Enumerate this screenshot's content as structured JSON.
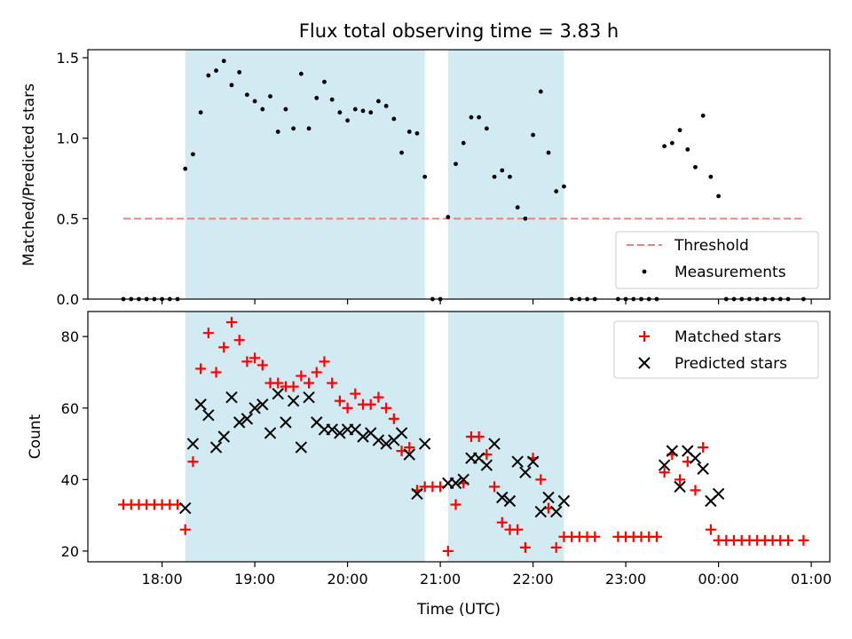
{
  "figure_title": "Flux total observing time = 3.83 h",
  "colors": {
    "band": "#add8e6",
    "threshold": "#f08080",
    "measurements": "#000000",
    "matched": "#ff0000",
    "predicted": "#000000"
  },
  "chart_data": [
    {
      "type": "scatter",
      "title": "Flux total observing time = 3.83 h",
      "xlabel": "",
      "ylabel": "Matched/Predicted stars",
      "xlim": [
        "17:12",
        "01:12"
      ],
      "ylim": [
        0,
        1.55
      ],
      "yticks": [
        "0.0",
        "0.5",
        "1.0",
        "1.5"
      ],
      "xticks": [
        "18:00",
        "19:00",
        "20:00",
        "21:00",
        "22:00",
        "23:00",
        "00:00",
        "01:00"
      ],
      "shaded_ranges": [
        [
          "18:15",
          "20:50"
        ],
        [
          "21:05",
          "22:20"
        ]
      ],
      "legend_position": "lower-right",
      "threshold": {
        "name": "Threshold",
        "value": 0.5,
        "x_range": [
          "17:35",
          "00:55"
        ]
      },
      "series": [
        {
          "name": "Measurements",
          "points": [
            [
              "17:35",
              0
            ],
            [
              "17:40",
              0
            ],
            [
              "17:45",
              0
            ],
            [
              "17:50",
              0
            ],
            [
              "17:55",
              0
            ],
            [
              "18:00",
              0
            ],
            [
              "18:05",
              0
            ],
            [
              "18:10",
              0
            ],
            [
              "18:15",
              0.81
            ],
            [
              "18:20",
              0.9
            ],
            [
              "18:25",
              1.16
            ],
            [
              "18:30",
              1.39
            ],
            [
              "18:35",
              1.42
            ],
            [
              "18:40",
              1.48
            ],
            [
              "18:45",
              1.33
            ],
            [
              "18:50",
              1.41
            ],
            [
              "18:55",
              1.27
            ],
            [
              "19:00",
              1.23
            ],
            [
              "19:05",
              1.18
            ],
            [
              "19:10",
              1.26
            ],
            [
              "19:15",
              1.04
            ],
            [
              "19:20",
              1.18
            ],
            [
              "19:25",
              1.06
            ],
            [
              "19:30",
              1.4
            ],
            [
              "19:35",
              1.06
            ],
            [
              "19:40",
              1.25
            ],
            [
              "19:45",
              1.35
            ],
            [
              "19:50",
              1.24
            ],
            [
              "19:55",
              1.16
            ],
            [
              "20:00",
              1.11
            ],
            [
              "20:05",
              1.18
            ],
            [
              "20:10",
              1.17
            ],
            [
              "20:15",
              1.16
            ],
            [
              "20:20",
              1.23
            ],
            [
              "20:25",
              1.2
            ],
            [
              "20:30",
              1.12
            ],
            [
              "20:35",
              0.91
            ],
            [
              "20:40",
              1.04
            ],
            [
              "20:45",
              1.03
            ],
            [
              "20:50",
              0.76
            ],
            [
              "20:55",
              0
            ],
            [
              "21:00",
              0
            ],
            [
              "21:05",
              0.51
            ],
            [
              "21:10",
              0.84
            ],
            [
              "21:15",
              0.97
            ],
            [
              "21:20",
              1.13
            ],
            [
              "21:25",
              1.13
            ],
            [
              "21:30",
              1.06
            ],
            [
              "21:35",
              0.76
            ],
            [
              "21:40",
              0.8
            ],
            [
              "21:45",
              0.76
            ],
            [
              "21:50",
              0.57
            ],
            [
              "21:55",
              0.5
            ],
            [
              "22:00",
              1.02
            ],
            [
              "22:05",
              1.29
            ],
            [
              "22:10",
              0.91
            ],
            [
              "22:15",
              0.67
            ],
            [
              "22:20",
              0.7
            ],
            [
              "22:25",
              0
            ],
            [
              "22:30",
              0
            ],
            [
              "22:35",
              0
            ],
            [
              "22:40",
              0
            ],
            [
              "22:55",
              0
            ],
            [
              "23:00",
              0
            ],
            [
              "23:05",
              0
            ],
            [
              "23:10",
              0
            ],
            [
              "23:15",
              0
            ],
            [
              "23:20",
              0
            ],
            [
              "23:25",
              0.95
            ],
            [
              "23:30",
              0.97
            ],
            [
              "23:35",
              1.05
            ],
            [
              "23:40",
              0.93
            ],
            [
              "23:45",
              0.82
            ],
            [
              "23:50",
              1.14
            ],
            [
              "23:55",
              0.76
            ],
            [
              "00:00",
              0.64
            ],
            [
              "00:05",
              0
            ],
            [
              "00:10",
              0
            ],
            [
              "00:15",
              0
            ],
            [
              "00:20",
              0
            ],
            [
              "00:25",
              0
            ],
            [
              "00:30",
              0
            ],
            [
              "00:35",
              0
            ],
            [
              "00:40",
              0
            ],
            [
              "00:45",
              0
            ],
            [
              "00:55",
              0
            ]
          ]
        }
      ]
    },
    {
      "type": "scatter",
      "title": "",
      "xlabel": "Time (UTC)",
      "ylabel": "Count",
      "xlim": [
        "17:12",
        "01:12"
      ],
      "ylim": [
        17,
        87
      ],
      "yticks": [
        "20",
        "40",
        "60",
        "80"
      ],
      "xticks": [
        "18:00",
        "19:00",
        "20:00",
        "21:00",
        "22:00",
        "23:00",
        "00:00",
        "01:00"
      ],
      "shaded_ranges": [
        [
          "18:15",
          "20:50"
        ],
        [
          "21:05",
          "22:20"
        ]
      ],
      "legend_position": "upper-right",
      "series": [
        {
          "name": "Matched stars",
          "points": [
            [
              "17:35",
              33
            ],
            [
              "17:40",
              33
            ],
            [
              "17:45",
              33
            ],
            [
              "17:50",
              33
            ],
            [
              "17:55",
              33
            ],
            [
              "18:00",
              33
            ],
            [
              "18:05",
              33
            ],
            [
              "18:10",
              33
            ],
            [
              "18:15",
              26
            ],
            [
              "18:20",
              45
            ],
            [
              "18:25",
              71
            ],
            [
              "18:30",
              81
            ],
            [
              "18:35",
              70
            ],
            [
              "18:40",
              77
            ],
            [
              "18:45",
              84
            ],
            [
              "18:50",
              79
            ],
            [
              "18:55",
              73
            ],
            [
              "19:00",
              74
            ],
            [
              "19:05",
              72
            ],
            [
              "19:10",
              67
            ],
            [
              "19:15",
              67
            ],
            [
              "19:20",
              66
            ],
            [
              "19:25",
              66
            ],
            [
              "19:30",
              69
            ],
            [
              "19:35",
              67
            ],
            [
              "19:40",
              70
            ],
            [
              "19:45",
              73
            ],
            [
              "19:50",
              67
            ],
            [
              "19:55",
              62
            ],
            [
              "20:00",
              60
            ],
            [
              "20:05",
              64
            ],
            [
              "20:10",
              61
            ],
            [
              "20:15",
              61
            ],
            [
              "20:20",
              63
            ],
            [
              "20:25",
              60
            ],
            [
              "20:30",
              57
            ],
            [
              "20:35",
              48
            ],
            [
              "20:40",
              49
            ],
            [
              "20:45",
              37
            ],
            [
              "20:50",
              38
            ],
            [
              "20:55",
              38
            ],
            [
              "21:00",
              38
            ],
            [
              "21:05",
              20
            ],
            [
              "21:10",
              33
            ],
            [
              "21:15",
              39
            ],
            [
              "21:20",
              52
            ],
            [
              "21:25",
              52
            ],
            [
              "21:30",
              47
            ],
            [
              "21:35",
              38
            ],
            [
              "21:40",
              28
            ],
            [
              "21:45",
              26
            ],
            [
              "21:50",
              26
            ],
            [
              "21:55",
              21
            ],
            [
              "22:00",
              46
            ],
            [
              "22:05",
              40
            ],
            [
              "22:10",
              32
            ],
            [
              "22:15",
              21
            ],
            [
              "22:20",
              24
            ],
            [
              "22:25",
              24
            ],
            [
              "22:30",
              24
            ],
            [
              "22:35",
              24
            ],
            [
              "22:40",
              24
            ],
            [
              "22:55",
              24
            ],
            [
              "23:00",
              24
            ],
            [
              "23:05",
              24
            ],
            [
              "23:10",
              24
            ],
            [
              "23:15",
              24
            ],
            [
              "23:20",
              24
            ],
            [
              "23:25",
              42
            ],
            [
              "23:30",
              47
            ],
            [
              "23:35",
              40
            ],
            [
              "23:40",
              45
            ],
            [
              "23:45",
              37
            ],
            [
              "23:50",
              49
            ],
            [
              "23:55",
              26
            ],
            [
              "00:00",
              23
            ],
            [
              "00:05",
              23
            ],
            [
              "00:10",
              23
            ],
            [
              "00:15",
              23
            ],
            [
              "00:20",
              23
            ],
            [
              "00:25",
              23
            ],
            [
              "00:30",
              23
            ],
            [
              "00:35",
              23
            ],
            [
              "00:40",
              23
            ],
            [
              "00:45",
              23
            ],
            [
              "00:55",
              23
            ]
          ]
        },
        {
          "name": "Predicted stars",
          "points": [
            [
              "18:15",
              32
            ],
            [
              "18:20",
              50
            ],
            [
              "18:25",
              61
            ],
            [
              "18:30",
              58
            ],
            [
              "18:35",
              49
            ],
            [
              "18:40",
              52
            ],
            [
              "18:45",
              63
            ],
            [
              "18:50",
              56
            ],
            [
              "18:55",
              57
            ],
            [
              "19:00",
              60
            ],
            [
              "19:05",
              61
            ],
            [
              "19:10",
              53
            ],
            [
              "19:15",
              64
            ],
            [
              "19:20",
              56
            ],
            [
              "19:25",
              62
            ],
            [
              "19:30",
              49
            ],
            [
              "19:35",
              63
            ],
            [
              "19:40",
              56
            ],
            [
              "19:45",
              54
            ],
            [
              "19:50",
              54
            ],
            [
              "19:55",
              53
            ],
            [
              "20:00",
              54
            ],
            [
              "20:05",
              54
            ],
            [
              "20:10",
              52
            ],
            [
              "20:15",
              53
            ],
            [
              "20:20",
              51
            ],
            [
              "20:25",
              50
            ],
            [
              "20:30",
              51
            ],
            [
              "20:35",
              53
            ],
            [
              "20:40",
              47
            ],
            [
              "20:45",
              36
            ],
            [
              "20:50",
              50
            ],
            [
              "21:05",
              39
            ],
            [
              "21:10",
              39
            ],
            [
              "21:15",
              40
            ],
            [
              "21:20",
              46
            ],
            [
              "21:25",
              46
            ],
            [
              "21:30",
              44
            ],
            [
              "21:35",
              50
            ],
            [
              "21:40",
              35
            ],
            [
              "21:45",
              34
            ],
            [
              "21:50",
              45
            ],
            [
              "21:55",
              42
            ],
            [
              "22:00",
              45
            ],
            [
              "22:05",
              31
            ],
            [
              "22:10",
              35
            ],
            [
              "22:15",
              31
            ],
            [
              "22:20",
              34
            ],
            [
              "23:25",
              44
            ],
            [
              "23:30",
              48
            ],
            [
              "23:35",
              38
            ],
            [
              "23:40",
              48
            ],
            [
              "23:45",
              46
            ],
            [
              "23:50",
              43
            ],
            [
              "23:55",
              34
            ],
            [
              "00:00",
              36
            ]
          ]
        }
      ]
    }
  ]
}
